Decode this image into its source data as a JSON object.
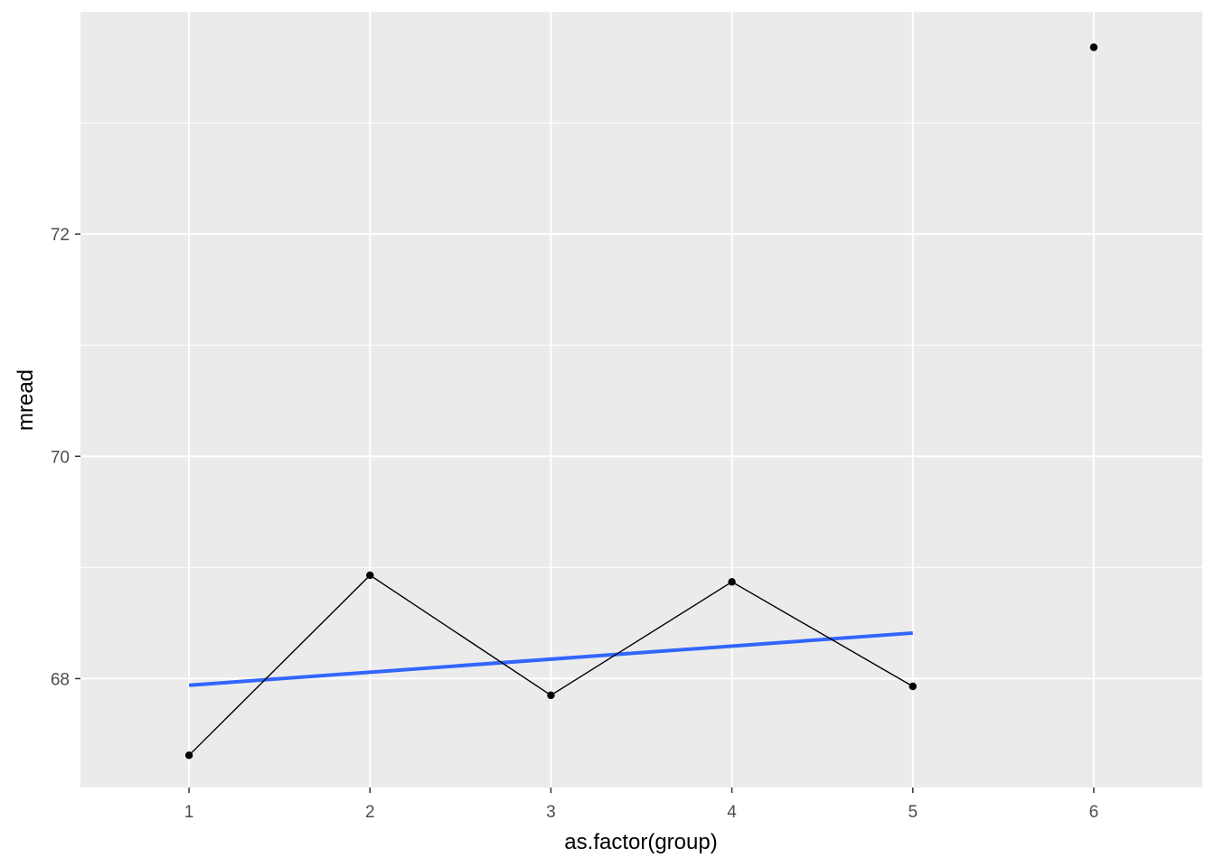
{
  "chart_data": {
    "type": "line",
    "xlabel": "as.factor(group)",
    "ylabel": "mread",
    "categories": [
      "1",
      "2",
      "3",
      "4",
      "5",
      "6"
    ],
    "ylim": [
      67.02,
      74.0
    ],
    "yticks": [
      68,
      70,
      72
    ],
    "grid": true,
    "series": [
      {
        "type": "line+points",
        "x": [
          "1",
          "2",
          "3",
          "4",
          "5",
          "6"
        ],
        "values": [
          67.31,
          68.93,
          67.85,
          68.87,
          67.93,
          73.68
        ],
        "connected_through": "5",
        "color": "#000000"
      },
      {
        "type": "linear-fit",
        "x": [
          "1",
          "5"
        ],
        "values": [
          67.94,
          68.41
        ],
        "color": "#3366ff"
      }
    ]
  }
}
